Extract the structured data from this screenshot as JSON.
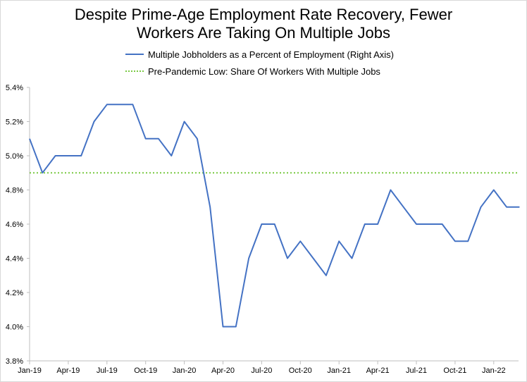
{
  "chart_data": {
    "type": "line",
    "title_lines": [
      "Despite Prime-Age Employment Rate Recovery, Fewer",
      "Workers Are Taking On Multiple Jobs"
    ],
    "legend": {
      "series_label": "Multiple Jobholders as a Percent of Employment (Right Axis)",
      "reference_label": "Pre-Pandemic Low: Share Of Workers With Multiple Jobs"
    },
    "x_tick_labels": [
      "Jan-19",
      "Apr-19",
      "Jul-19",
      "Oct-19",
      "Jan-20",
      "Apr-20",
      "Jul-20",
      "Oct-20",
      "Jan-21",
      "Apr-21",
      "Jul-21",
      "Oct-21",
      "Jan-22"
    ],
    "y_tick_labels": [
      "3.8%",
      "4.0%",
      "4.2%",
      "4.4%",
      "4.6%",
      "4.8%",
      "5.0%",
      "5.2%",
      "5.4%"
    ],
    "ylim": [
      3.8,
      5.4
    ],
    "y_ticks": [
      3.8,
      4.0,
      4.2,
      4.4,
      4.6,
      4.8,
      5.0,
      5.2,
      5.4
    ],
    "grid": false,
    "series": [
      {
        "name": "Multiple Jobholders as a Percent of Employment (Right Axis)",
        "color": "#4472c4",
        "x": [
          "Jan-19",
          "Feb-19",
          "Mar-19",
          "Apr-19",
          "May-19",
          "Jun-19",
          "Jul-19",
          "Aug-19",
          "Sep-19",
          "Oct-19",
          "Nov-19",
          "Dec-19",
          "Jan-20",
          "Feb-20",
          "Mar-20",
          "Apr-20",
          "May-20",
          "Jun-20",
          "Jul-20",
          "Aug-20",
          "Sep-20",
          "Oct-20",
          "Nov-20",
          "Dec-20",
          "Jan-21",
          "Feb-21",
          "Mar-21",
          "Apr-21",
          "May-21",
          "Jun-21",
          "Jul-21",
          "Aug-21",
          "Sep-21",
          "Oct-21",
          "Nov-21",
          "Dec-21",
          "Jan-22",
          "Feb-22",
          "Mar-22"
        ],
        "values": [
          5.1,
          4.9,
          5.0,
          5.0,
          5.0,
          5.2,
          5.3,
          5.3,
          5.3,
          5.1,
          5.1,
          5.0,
          5.2,
          5.1,
          4.7,
          4.0,
          4.0,
          4.4,
          4.6,
          4.6,
          4.4,
          4.5,
          4.4,
          4.3,
          4.5,
          4.4,
          4.6,
          4.6,
          4.8,
          4.7,
          4.6,
          4.6,
          4.6,
          4.5,
          4.5,
          4.7,
          4.8,
          4.7,
          4.7
        ]
      },
      {
        "name": "Pre-Pandemic Low: Share Of Workers With Multiple Jobs",
        "color": "#7ac943",
        "style": "dotted",
        "value": 4.9
      }
    ]
  }
}
